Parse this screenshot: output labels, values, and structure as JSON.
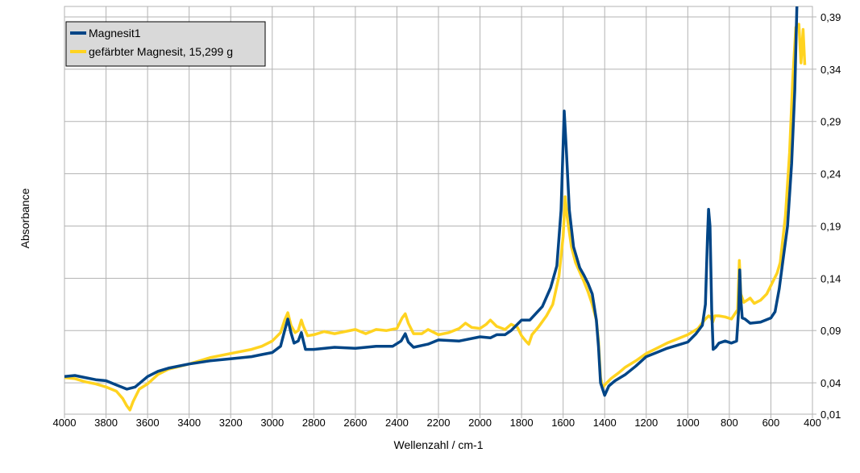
{
  "chart_data": {
    "type": "line",
    "xlabel": "Wellenzahl / cm-1",
    "ylabel": "Absorbance",
    "xlim": [
      4000,
      400
    ],
    "ylim": [
      0.01,
      0.4
    ],
    "x_ticks": [
      {
        "value": 4000,
        "label": "4000"
      },
      {
        "value": 3800,
        "label": "3800"
      },
      {
        "value": 3600,
        "label": "3600"
      },
      {
        "value": 3400,
        "label": "3400"
      },
      {
        "value": 3200,
        "label": "3200"
      },
      {
        "value": 3000,
        "label": "3000"
      },
      {
        "value": 2800,
        "label": "2800"
      },
      {
        "value": 2600,
        "label": "2600"
      },
      {
        "value": 2400,
        "label": "2400"
      },
      {
        "value": 2200,
        "label": "2200"
      },
      {
        "value": 2000,
        "label": "2000"
      },
      {
        "value": 1800,
        "label": "1800"
      },
      {
        "value": 1600,
        "label": "1600"
      },
      {
        "value": 1400,
        "label": "1400"
      },
      {
        "value": 1200,
        "label": "1200"
      },
      {
        "value": 1000,
        "label": "1000"
      },
      {
        "value": 800,
        "label": "800"
      },
      {
        "value": 600,
        "label": "600"
      },
      {
        "value": 400,
        "label": "400"
      }
    ],
    "y_ticks": [
      {
        "value": 0.01,
        "label": "0,01"
      },
      {
        "value": 0.04,
        "label": "0,04"
      },
      {
        "value": 0.09,
        "label": "0,09"
      },
      {
        "value": 0.14,
        "label": "0,14"
      },
      {
        "value": 0.19,
        "label": "0,19"
      },
      {
        "value": 0.24,
        "label": "0,24"
      },
      {
        "value": 0.29,
        "label": "0,29"
      },
      {
        "value": 0.34,
        "label": "0,34"
      },
      {
        "value": 0.39,
        "label": "0,39"
      }
    ],
    "grid": true,
    "legend_position": "top-left",
    "series": [
      {
        "name": "Magnesit1",
        "color": "#004586",
        "points": [
          [
            4000,
            0.046
          ],
          [
            3950,
            0.047
          ],
          [
            3900,
            0.045
          ],
          [
            3850,
            0.043
          ],
          [
            3800,
            0.042
          ],
          [
            3750,
            0.038
          ],
          [
            3700,
            0.034
          ],
          [
            3660,
            0.036
          ],
          [
            3600,
            0.046
          ],
          [
            3550,
            0.051
          ],
          [
            3500,
            0.054
          ],
          [
            3400,
            0.058
          ],
          [
            3300,
            0.061
          ],
          [
            3200,
            0.063
          ],
          [
            3100,
            0.065
          ],
          [
            3050,
            0.067
          ],
          [
            3000,
            0.069
          ],
          [
            2960,
            0.075
          ],
          [
            2940,
            0.09
          ],
          [
            2925,
            0.101
          ],
          [
            2910,
            0.088
          ],
          [
            2895,
            0.078
          ],
          [
            2875,
            0.08
          ],
          [
            2860,
            0.088
          ],
          [
            2850,
            0.08
          ],
          [
            2840,
            0.072
          ],
          [
            2800,
            0.072
          ],
          [
            2700,
            0.074
          ],
          [
            2600,
            0.073
          ],
          [
            2500,
            0.075
          ],
          [
            2420,
            0.075
          ],
          [
            2380,
            0.08
          ],
          [
            2360,
            0.087
          ],
          [
            2345,
            0.079
          ],
          [
            2320,
            0.074
          ],
          [
            2250,
            0.077
          ],
          [
            2200,
            0.081
          ],
          [
            2100,
            0.08
          ],
          [
            2000,
            0.084
          ],
          [
            1950,
            0.083
          ],
          [
            1920,
            0.086
          ],
          [
            1880,
            0.086
          ],
          [
            1850,
            0.09
          ],
          [
            1820,
            0.096
          ],
          [
            1800,
            0.1
          ],
          [
            1760,
            0.1
          ],
          [
            1700,
            0.113
          ],
          [
            1660,
            0.131
          ],
          [
            1630,
            0.152
          ],
          [
            1610,
            0.205
          ],
          [
            1595,
            0.3
          ],
          [
            1585,
            0.265
          ],
          [
            1570,
            0.205
          ],
          [
            1550,
            0.17
          ],
          [
            1520,
            0.15
          ],
          [
            1500,
            0.143
          ],
          [
            1480,
            0.135
          ],
          [
            1460,
            0.125
          ],
          [
            1440,
            0.1
          ],
          [
            1430,
            0.075
          ],
          [
            1420,
            0.04
          ],
          [
            1400,
            0.028
          ],
          [
            1380,
            0.037
          ],
          [
            1350,
            0.042
          ],
          [
            1300,
            0.048
          ],
          [
            1250,
            0.056
          ],
          [
            1200,
            0.065
          ],
          [
            1150,
            0.069
          ],
          [
            1100,
            0.073
          ],
          [
            1050,
            0.076
          ],
          [
            1000,
            0.079
          ],
          [
            960,
            0.087
          ],
          [
            930,
            0.095
          ],
          [
            915,
            0.115
          ],
          [
            905,
            0.18
          ],
          [
            900,
            0.206
          ],
          [
            893,
            0.19
          ],
          [
            885,
            0.11
          ],
          [
            878,
            0.072
          ],
          [
            865,
            0.074
          ],
          [
            850,
            0.078
          ],
          [
            820,
            0.08
          ],
          [
            790,
            0.078
          ],
          [
            765,
            0.08
          ],
          [
            755,
            0.11
          ],
          [
            750,
            0.148
          ],
          [
            745,
            0.12
          ],
          [
            738,
            0.102
          ],
          [
            725,
            0.101
          ],
          [
            700,
            0.097
          ],
          [
            650,
            0.098
          ],
          [
            600,
            0.102
          ],
          [
            580,
            0.108
          ],
          [
            560,
            0.13
          ],
          [
            540,
            0.16
          ],
          [
            520,
            0.19
          ],
          [
            500,
            0.25
          ],
          [
            485,
            0.32
          ],
          [
            475,
            0.4
          ]
        ]
      },
      {
        "name": "gefärbter Magnesit, 15,299 g",
        "color": "#ffd320",
        "points": [
          [
            4000,
            0.045
          ],
          [
            3950,
            0.044
          ],
          [
            3900,
            0.041
          ],
          [
            3850,
            0.039
          ],
          [
            3800,
            0.036
          ],
          [
            3750,
            0.032
          ],
          [
            3720,
            0.025
          ],
          [
            3700,
            0.018
          ],
          [
            3685,
            0.014
          ],
          [
            3670,
            0.022
          ],
          [
            3640,
            0.034
          ],
          [
            3600,
            0.039
          ],
          [
            3550,
            0.048
          ],
          [
            3500,
            0.053
          ],
          [
            3400,
            0.058
          ],
          [
            3300,
            0.064
          ],
          [
            3200,
            0.068
          ],
          [
            3100,
            0.072
          ],
          [
            3050,
            0.075
          ],
          [
            3000,
            0.08
          ],
          [
            2960,
            0.088
          ],
          [
            2940,
            0.1
          ],
          [
            2925,
            0.107
          ],
          [
            2910,
            0.095
          ],
          [
            2890,
            0.088
          ],
          [
            2875,
            0.09
          ],
          [
            2860,
            0.1
          ],
          [
            2850,
            0.094
          ],
          [
            2830,
            0.085
          ],
          [
            2800,
            0.086
          ],
          [
            2750,
            0.089
          ],
          [
            2700,
            0.087
          ],
          [
            2600,
            0.091
          ],
          [
            2550,
            0.087
          ],
          [
            2500,
            0.091
          ],
          [
            2450,
            0.09
          ],
          [
            2400,
            0.092
          ],
          [
            2375,
            0.102
          ],
          [
            2360,
            0.106
          ],
          [
            2345,
            0.097
          ],
          [
            2320,
            0.087
          ],
          [
            2280,
            0.087
          ],
          [
            2250,
            0.091
          ],
          [
            2200,
            0.086
          ],
          [
            2150,
            0.088
          ],
          [
            2100,
            0.092
          ],
          [
            2070,
            0.097
          ],
          [
            2040,
            0.093
          ],
          [
            2000,
            0.092
          ],
          [
            1970,
            0.096
          ],
          [
            1950,
            0.1
          ],
          [
            1920,
            0.094
          ],
          [
            1880,
            0.091
          ],
          [
            1850,
            0.096
          ],
          [
            1820,
            0.093
          ],
          [
            1800,
            0.085
          ],
          [
            1780,
            0.08
          ],
          [
            1765,
            0.077
          ],
          [
            1750,
            0.086
          ],
          [
            1720,
            0.093
          ],
          [
            1680,
            0.104
          ],
          [
            1650,
            0.115
          ],
          [
            1620,
            0.142
          ],
          [
            1600,
            0.18
          ],
          [
            1590,
            0.218
          ],
          [
            1580,
            0.198
          ],
          [
            1560,
            0.17
          ],
          [
            1540,
            0.155
          ],
          [
            1500,
            0.137
          ],
          [
            1480,
            0.127
          ],
          [
            1460,
            0.115
          ],
          [
            1440,
            0.1
          ],
          [
            1430,
            0.08
          ],
          [
            1420,
            0.045
          ],
          [
            1410,
            0.035
          ],
          [
            1400,
            0.038
          ],
          [
            1370,
            0.044
          ],
          [
            1330,
            0.05
          ],
          [
            1300,
            0.055
          ],
          [
            1250,
            0.061
          ],
          [
            1200,
            0.068
          ],
          [
            1150,
            0.073
          ],
          [
            1100,
            0.078
          ],
          [
            1050,
            0.082
          ],
          [
            1000,
            0.086
          ],
          [
            950,
            0.092
          ],
          [
            920,
            0.1
          ],
          [
            900,
            0.104
          ],
          [
            890,
            0.103
          ],
          [
            880,
            0.098
          ],
          [
            870,
            0.104
          ],
          [
            850,
            0.104
          ],
          [
            820,
            0.103
          ],
          [
            790,
            0.101
          ],
          [
            760,
            0.11
          ],
          [
            752,
            0.157
          ],
          [
            745,
            0.125
          ],
          [
            730,
            0.117
          ],
          [
            700,
            0.121
          ],
          [
            680,
            0.116
          ],
          [
            650,
            0.119
          ],
          [
            620,
            0.125
          ],
          [
            590,
            0.137
          ],
          [
            570,
            0.145
          ],
          [
            555,
            0.155
          ],
          [
            530,
            0.2
          ],
          [
            510,
            0.26
          ],
          [
            495,
            0.33
          ],
          [
            480,
            0.38
          ],
          [
            465,
            0.383
          ],
          [
            455,
            0.346
          ],
          [
            445,
            0.378
          ],
          [
            437,
            0.344
          ]
        ]
      }
    ]
  }
}
